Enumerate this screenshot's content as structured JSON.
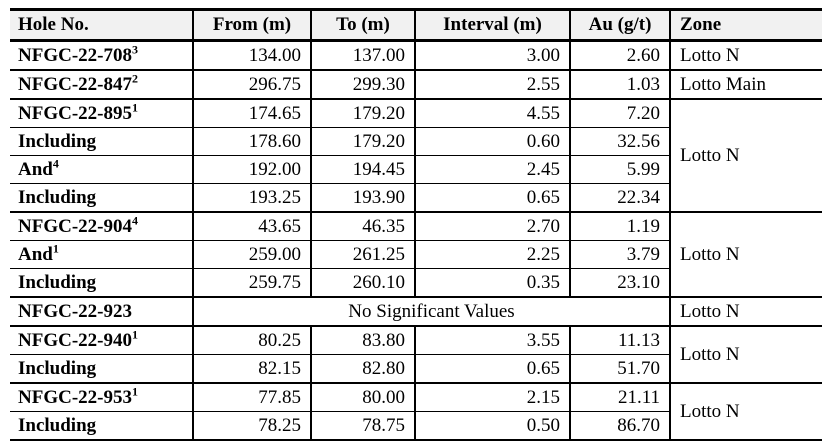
{
  "page": {
    "background": "#ffffff",
    "text_color": "#000000"
  },
  "table": {
    "header_bg": "#f1f1f1",
    "border_color": "#000000",
    "columns": [
      {
        "key": "hole",
        "label": "Hole No."
      },
      {
        "key": "from",
        "label": "From (m)"
      },
      {
        "key": "to",
        "label": "To (m)"
      },
      {
        "key": "interval",
        "label": "Interval (m)"
      },
      {
        "key": "au",
        "label": "Au (g/t)"
      },
      {
        "key": "zone",
        "label": "Zone"
      }
    ],
    "groups": [
      {
        "zone": "Lotto N",
        "rows": [
          {
            "hole": "NFGC-22-708",
            "sup": "3",
            "from": "134.00",
            "to": "137.00",
            "interval": "3.00",
            "au": "2.60"
          }
        ]
      },
      {
        "zone": "Lotto Main",
        "rows": [
          {
            "hole": "NFGC-22-847",
            "sup": "2",
            "from": "296.75",
            "to": "299.30",
            "interval": "2.55",
            "au": "1.03"
          }
        ]
      },
      {
        "zone": "Lotto N",
        "rows": [
          {
            "hole": "NFGC-22-895",
            "sup": "1",
            "from": "174.65",
            "to": "179.20",
            "interval": "4.55",
            "au": "7.20"
          },
          {
            "hole": "Including",
            "sup": "",
            "from": "178.60",
            "to": "179.20",
            "interval": "0.60",
            "au": "32.56"
          },
          {
            "hole": "And",
            "sup": "4",
            "from": "192.00",
            "to": "194.45",
            "interval": "2.45",
            "au": "5.99"
          },
          {
            "hole": "Including",
            "sup": "",
            "from": "193.25",
            "to": "193.90",
            "interval": "0.65",
            "au": "22.34"
          }
        ]
      },
      {
        "zone": "Lotto N",
        "rows": [
          {
            "hole": "NFGC-22-904",
            "sup": "4",
            "from": "43.65",
            "to": "46.35",
            "interval": "2.70",
            "au": "1.19"
          },
          {
            "hole": "And",
            "sup": "1",
            "from": "259.00",
            "to": "261.25",
            "interval": "2.25",
            "au": "3.79"
          },
          {
            "hole": "Including",
            "sup": "",
            "from": "259.75",
            "to": "260.10",
            "interval": "0.35",
            "au": "23.10"
          }
        ]
      },
      {
        "zone": "Lotto N",
        "rows": [
          {
            "hole": "NFGC-22-923",
            "sup": "",
            "span_text": "No Significant Values"
          }
        ]
      },
      {
        "zone": "Lotto N",
        "rows": [
          {
            "hole": "NFGC-22-940",
            "sup": "1",
            "from": "80.25",
            "to": "83.80",
            "interval": "3.55",
            "au": "11.13"
          },
          {
            "hole": "Including",
            "sup": "",
            "from": "82.15",
            "to": "82.80",
            "interval": "0.65",
            "au": "51.70"
          }
        ]
      },
      {
        "zone": "Lotto N",
        "rows": [
          {
            "hole": "NFGC-22-953",
            "sup": "1",
            "from": "77.85",
            "to": "80.00",
            "interval": "2.15",
            "au": "21.11"
          },
          {
            "hole": "Including",
            "sup": "",
            "from": "78.25",
            "to": "78.75",
            "interval": "0.50",
            "au": "86.70"
          }
        ]
      }
    ]
  }
}
